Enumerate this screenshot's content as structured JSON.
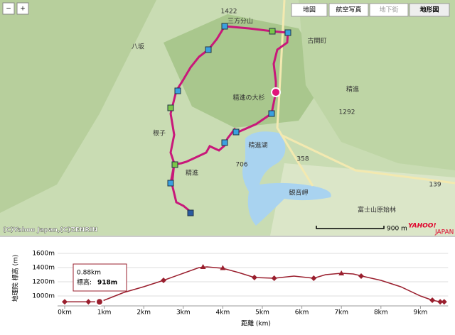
{
  "map": {
    "zoom_out": "−",
    "zoom_in": "+",
    "tabs": [
      "地図",
      "航空写真",
      "地下街",
      "地形図"
    ],
    "labels": [
      "1422",
      "三方分山",
      "八坂",
      "根子",
      "精進",
      "精進の大杉",
      "古関町",
      "精進",
      "1292",
      "精進湖",
      "358",
      "706",
      "観音岬",
      "富士山原始林",
      "139"
    ],
    "copyright": "(C)Yahoo Japan,(C)ZENRIN",
    "scale": "900 m",
    "logo": "YAHOO!",
    "logo_sub": "JAPAN"
  },
  "chart_data": {
    "type": "line",
    "x_label": "距離 (km)",
    "y_label": "地理院 標高 (m)",
    "xlim": [
      0,
      9.7
    ],
    "ylim": [
      860,
      1600
    ],
    "xticks": [
      {
        "value": 0,
        "label": "0km"
      },
      {
        "value": 1,
        "label": "1km"
      },
      {
        "value": 2,
        "label": "2km"
      },
      {
        "value": 3,
        "label": "3km"
      },
      {
        "value": 4,
        "label": "4km"
      },
      {
        "value": 5,
        "label": "5km"
      },
      {
        "value": 6,
        "label": "6km"
      },
      {
        "value": 7,
        "label": "7km"
      },
      {
        "value": 8,
        "label": "8km"
      },
      {
        "value": 9,
        "label": "9km"
      }
    ],
    "yticks": [
      {
        "value": 1000,
        "label": "1000m"
      },
      {
        "value": 1200,
        "label": "1200m"
      },
      {
        "value": 1400,
        "label": "1400m"
      },
      {
        "value": 1600,
        "label": "1600m"
      }
    ],
    "color": "#9a1f2e",
    "x": [
      0,
      0.6,
      0.88,
      1,
      1.5,
      2,
      2.5,
      3,
      3.4,
      3.6,
      4,
      4.4,
      4.8,
      5.3,
      5.8,
      6.3,
      6.6,
      7,
      7.3,
      7.6,
      8,
      8.5,
      9,
      9.3,
      9.5,
      9.6
    ],
    "values": [
      918,
      918,
      918,
      940,
      1050,
      1130,
      1220,
      1320,
      1400,
      1410,
      1390,
      1330,
      1260,
      1250,
      1280,
      1250,
      1300,
      1320,
      1310,
      1270,
      1220,
      1130,
      1000,
      940,
      918,
      918
    ],
    "markers": {
      "x": [
        0,
        0.6,
        2.5,
        3.5,
        4,
        4.8,
        5.3,
        6.3,
        7,
        7.5,
        9.3,
        9.5,
        9.6
      ],
      "values": [
        918,
        918,
        1220,
        1410,
        1395,
        1260,
        1250,
        1250,
        1320,
        1280,
        940,
        918,
        918
      ],
      "shapes": [
        "diamond",
        "diamond",
        "diamond",
        "triangle",
        "triangle",
        "diamond",
        "diamond",
        "diamond",
        "triangle",
        "diamond",
        "diamond",
        "diamond",
        "diamond"
      ]
    },
    "tooltip": {
      "x": 0.88,
      "value": 918,
      "distance": "0.88km",
      "label": "標高:",
      "value_label": "918m"
    }
  }
}
